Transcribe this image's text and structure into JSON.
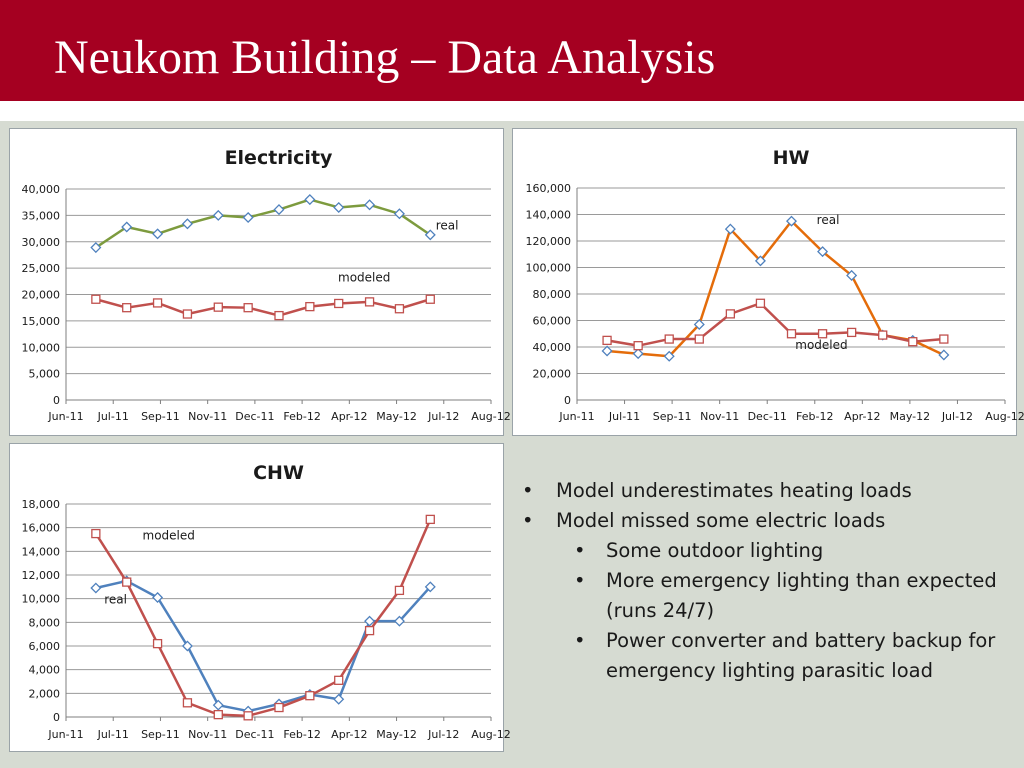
{
  "slide": {
    "title": "Neukom Building – Data Analysis",
    "bullets": [
      {
        "level": 1,
        "text": "Model underestimates heating loads"
      },
      {
        "level": 1,
        "text": "Model missed some electric loads"
      },
      {
        "level": 2,
        "text": "Some outdoor lighting"
      },
      {
        "level": 2,
        "text": "More emergency lighting than expected (runs 24/7)"
      },
      {
        "level": 2,
        "text": "Power converter and battery backup for emergency lighting parasitic load"
      }
    ]
  },
  "colors": {
    "title_bar": "#a50021",
    "background": "#d6dbd2",
    "real_electricity": "#7d9b3e",
    "real_hw": "#e46c0a",
    "real_chw": "#4f81bd",
    "modeled": "#c0504d",
    "marker_diamond": "#4f81bd",
    "marker_square": "#c0504d",
    "grid": "#9a9a9a"
  },
  "chart_data": [
    {
      "id": "electricity",
      "type": "line",
      "title": "Electricity",
      "x_ticks": [
        "Jun-11",
        "Jul-11",
        "Sep-11",
        "Nov-11",
        "Dec-11",
        "Feb-12",
        "Apr-12",
        "May-12",
        "Jul-12",
        "Aug-12"
      ],
      "xlim": [
        "2011-06-01",
        "2012-08-01"
      ],
      "ylim": [
        0,
        40000
      ],
      "y_ticks": [
        "0",
        "5,000",
        "10,000",
        "15,000",
        "20,000",
        "25,000",
        "30,000",
        "35,000",
        "40,000"
      ],
      "grid": true,
      "series": [
        {
          "name": "real",
          "line_color": "#7d9b3e",
          "marker": "diamond",
          "label_at": [
            0.87,
            32300
          ],
          "x": [
            "2011-07-01",
            "2011-08-01",
            "2011-09-01",
            "2011-10-01",
            "2011-11-01",
            "2011-12-01",
            "2012-01-01",
            "2012-02-01",
            "2012-03-01",
            "2012-04-01",
            "2012-05-01",
            "2012-06-01"
          ],
          "y": [
            28900,
            32800,
            31500,
            33400,
            35000,
            34600,
            36100,
            38000,
            36500,
            37000,
            35300,
            31300
          ]
        },
        {
          "name": "modeled",
          "line_color": "#c0504d",
          "marker": "square",
          "label_at": [
            0.64,
            22500
          ],
          "x": [
            "2011-07-01",
            "2011-08-01",
            "2011-09-01",
            "2011-10-01",
            "2011-11-01",
            "2011-12-01",
            "2012-01-01",
            "2012-02-01",
            "2012-03-01",
            "2012-04-01",
            "2012-05-01",
            "2012-06-01"
          ],
          "y": [
            19100,
            17500,
            18400,
            16300,
            17600,
            17500,
            16000,
            17700,
            18300,
            18600,
            17300,
            19100
          ]
        }
      ]
    },
    {
      "id": "hw",
      "type": "line",
      "title": "HW",
      "x_ticks": [
        "Jun-11",
        "Jul-11",
        "Sep-11",
        "Nov-11",
        "Dec-11",
        "Feb-12",
        "Apr-12",
        "May-12",
        "Jul-12",
        "Aug-12"
      ],
      "xlim": [
        "2011-06-01",
        "2012-08-01"
      ],
      "ylim": [
        0,
        160000
      ],
      "y_ticks": [
        "0",
        "20,000",
        "40,000",
        "60,000",
        "80,000",
        "100,000",
        "120,000",
        "140,000",
        "160,000"
      ],
      "grid": true,
      "series": [
        {
          "name": "real",
          "line_color": "#e46c0a",
          "marker": "diamond",
          "label_at": [
            0.56,
            133000
          ],
          "x": [
            "2011-07-01",
            "2011-08-01",
            "2011-09-01",
            "2011-10-01",
            "2011-11-01",
            "2011-12-01",
            "2012-01-01",
            "2012-02-01",
            "2012-03-01",
            "2012-04-01",
            "2012-05-01",
            "2012-06-01"
          ],
          "y": [
            37000,
            35000,
            33000,
            57000,
            129000,
            105000,
            135000,
            112000,
            94000,
            49000,
            45000,
            34000
          ]
        },
        {
          "name": "modeled",
          "line_color": "#c0504d",
          "marker": "square",
          "label_at": [
            0.51,
            38500
          ],
          "x": [
            "2011-07-01",
            "2011-08-01",
            "2011-09-01",
            "2011-10-01",
            "2011-11-01",
            "2011-12-01",
            "2012-01-01",
            "2012-02-01",
            "2012-03-01",
            "2012-04-01",
            "2012-05-01",
            "2012-06-01"
          ],
          "y": [
            45000,
            41000,
            46000,
            46000,
            65000,
            73000,
            50000,
            50000,
            51000,
            49000,
            44000,
            46000
          ]
        }
      ]
    },
    {
      "id": "chw",
      "type": "line",
      "title": "CHW",
      "x_ticks": [
        "Jun-11",
        "Jul-11",
        "Sep-11",
        "Nov-11",
        "Dec-11",
        "Feb-12",
        "Apr-12",
        "May-12",
        "Jul-12",
        "Aug-12"
      ],
      "xlim": [
        "2011-06-01",
        "2012-08-01"
      ],
      "ylim": [
        0,
        18000
      ],
      "y_ticks": [
        "0",
        "2,000",
        "4,000",
        "6,000",
        "8,000",
        "10,000",
        "12,000",
        "14,000",
        "16,000",
        "18,000"
      ],
      "grid": true,
      "series": [
        {
          "name": "real",
          "line_color": "#4f81bd",
          "marker": "diamond",
          "label_at": [
            0.09,
            9600
          ],
          "x": [
            "2011-07-01",
            "2011-08-01",
            "2011-09-01",
            "2011-10-01",
            "2011-11-01",
            "2011-12-01",
            "2012-01-01",
            "2012-02-01",
            "2012-03-01",
            "2012-04-01",
            "2012-05-01",
            "2012-06-01"
          ],
          "y": [
            10900,
            11500,
            10100,
            6000,
            1000,
            500,
            1100,
            1900,
            1500,
            8100,
            8100,
            11000
          ]
        },
        {
          "name": "modeled",
          "line_color": "#c0504d",
          "marker": "square",
          "label_at": [
            0.18,
            15000
          ],
          "x": [
            "2011-07-01",
            "2011-08-01",
            "2011-09-01",
            "2011-10-01",
            "2011-11-01",
            "2011-12-01",
            "2012-01-01",
            "2012-02-01",
            "2012-03-01",
            "2012-04-01",
            "2012-05-01",
            "2012-06-01"
          ],
          "y": [
            15500,
            11400,
            6200,
            1200,
            200,
            100,
            800,
            1800,
            3100,
            7300,
            10700,
            16700
          ]
        }
      ]
    }
  ]
}
